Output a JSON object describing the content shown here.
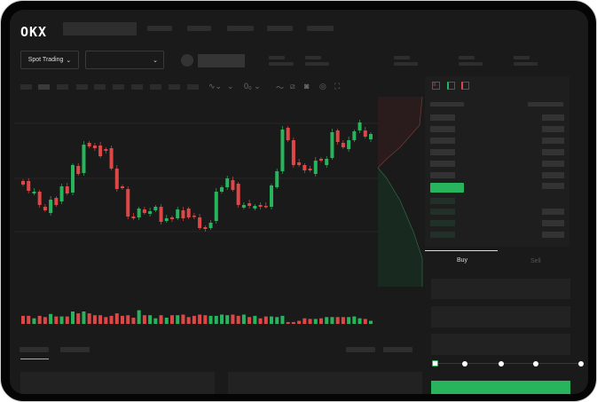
{
  "brand": {
    "name": "OKX"
  },
  "market_selector": {
    "label": "Spot Trading",
    "chevron": "chevron-down-icon"
  },
  "pair_selector": {
    "chevron": "chevron-down-icon"
  },
  "order_form": {
    "buy_tab": "Buy",
    "sell_tab": "Sell",
    "active_tab": "Buy",
    "leverage_slider_fraction": 0
  },
  "colors": {
    "up": "#27b45c",
    "down": "#df4747",
    "background": "#1a1a1a"
  },
  "toolbar_icons": [
    "indicator-icon",
    "chart-type-icon",
    "interval-icon",
    "line-tool-icon",
    "ruler-icon",
    "camera-icon",
    "settings-icon",
    "fullscreen-icon"
  ],
  "orderbook_layout_icons": [
    "book-both-icon",
    "book-bids-icon",
    "book-asks-icon"
  ],
  "chart_data": {
    "type": "candlestick",
    "candles": [
      [
        97,
        93
      ],
      [
        97,
        86
      ],
      [
        83,
        85
      ],
      [
        85,
        70
      ],
      [
        68,
        64
      ],
      [
        61,
        76
      ],
      [
        78,
        70
      ],
      [
        74,
        91
      ],
      [
        91,
        83
      ],
      [
        84,
        115
      ],
      [
        114,
        105
      ],
      [
        106,
        138
      ],
      [
        140,
        136
      ],
      [
        137,
        134
      ],
      [
        137,
        125
      ],
      [
        133,
        131
      ],
      [
        134,
        111
      ],
      [
        111,
        88
      ],
      [
        91,
        89
      ],
      [
        88,
        57
      ],
      [
        57,
        55
      ],
      [
        56,
        66
      ],
      [
        65,
        61
      ],
      [
        60,
        63
      ],
      [
        64,
        68
      ],
      [
        68,
        51
      ],
      [
        52,
        55
      ],
      [
        56,
        54
      ],
      [
        55,
        65
      ],
      [
        64,
        55
      ],
      [
        66,
        56
      ],
      [
        58,
        57
      ],
      [
        56,
        44
      ],
      [
        45,
        43
      ],
      [
        44,
        50
      ],
      [
        52,
        85
      ],
      [
        85,
        90
      ],
      [
        90,
        100
      ],
      [
        98,
        87
      ],
      [
        94,
        70
      ],
      [
        67,
        70
      ],
      [
        72,
        69
      ],
      [
        66,
        69
      ],
      [
        70,
        68
      ],
      [
        69,
        68
      ],
      [
        68,
        92
      ],
      [
        90,
        108
      ],
      [
        108,
        155
      ],
      [
        157,
        143
      ],
      [
        143,
        115
      ],
      [
        118,
        115
      ],
      [
        115,
        109
      ],
      [
        111,
        109
      ],
      [
        105,
        120
      ],
      [
        122,
        120
      ],
      [
        115,
        122
      ],
      [
        123,
        152
      ],
      [
        154,
        141
      ],
      [
        140,
        135
      ],
      [
        133,
        143
      ],
      [
        143,
        153
      ],
      [
        154,
        163
      ],
      [
        154,
        147
      ],
      [
        144,
        150
      ]
    ],
    "volume": [
      13,
      13,
      9,
      13,
      11,
      16,
      12,
      12,
      12,
      20,
      17,
      20,
      17,
      14,
      14,
      11,
      13,
      17,
      13,
      14,
      10,
      22,
      14,
      14,
      9,
      14,
      10,
      14,
      14,
      15,
      11,
      13,
      15,
      14,
      13,
      13,
      15,
      14,
      15,
      13,
      15,
      11,
      13,
      9,
      12,
      12,
      11,
      13,
      3,
      3,
      5,
      9,
      8,
      8,
      9,
      11,
      11,
      11,
      11,
      11,
      12,
      9,
      8,
      5
    ]
  }
}
